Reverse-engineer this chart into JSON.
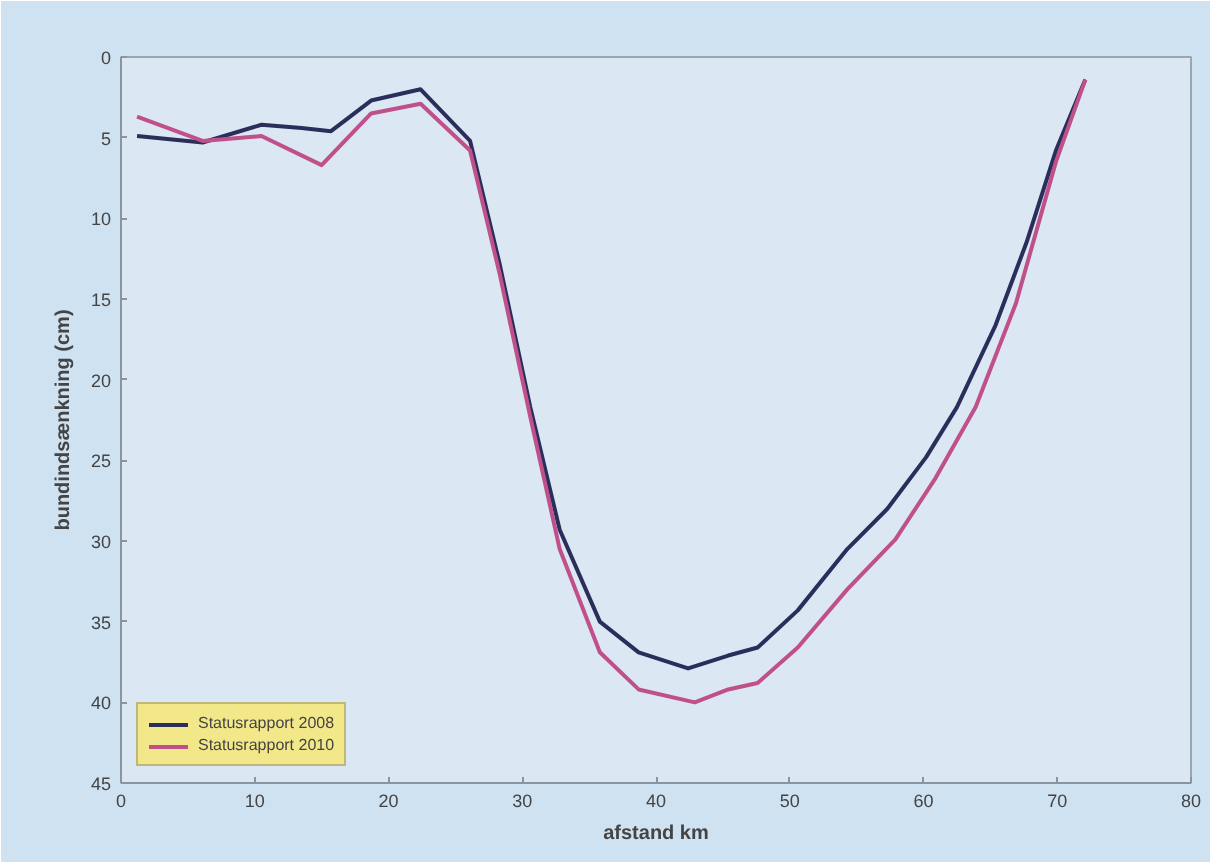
{
  "chart_data": {
    "type": "line",
    "xlabel": "afstand km",
    "ylabel": "bundindsænkning (cm)",
    "xlim": [
      0,
      80
    ],
    "xticks": [
      0,
      10,
      20,
      30,
      40,
      50,
      60,
      70,
      80
    ],
    "ylim": [
      45,
      0
    ],
    "yticks": [
      0,
      5,
      10,
      15,
      20,
      25,
      30,
      35,
      40,
      45
    ],
    "grid": false,
    "legend": "bottom left",
    "marker": "none",
    "line_style": "solid",
    "series": [
      {
        "name": "Statusrapport 2008",
        "color": "#2b2d5a",
        "x": [
          1.2,
          6.1,
          10.5,
          13.5,
          15.7,
          18.7,
          22.4,
          26.1,
          28.3,
          30.6,
          32.8,
          35.8,
          38.7,
          42.4,
          45.4,
          47.6,
          50.6,
          54.3,
          57.3,
          60.2,
          62.5,
          65.4,
          67.7,
          69.9,
          72.1
        ],
        "values": [
          4.9,
          5.3,
          4.2,
          4.4,
          4.6,
          2.7,
          2.0,
          5.2,
          12.8,
          21.7,
          29.3,
          35.0,
          36.9,
          37.9,
          37.1,
          36.6,
          34.3,
          30.5,
          28.0,
          24.8,
          21.7,
          16.6,
          11.5,
          5.8,
          1.4
        ]
      },
      {
        "name": "Statusrapport 2010",
        "color": "#c0508a",
        "x": [
          1.2,
          6.1,
          10.5,
          15.0,
          18.7,
          22.4,
          26.1,
          28.3,
          30.6,
          32.8,
          35.8,
          38.7,
          42.9,
          45.4,
          47.6,
          50.6,
          54.3,
          57.9,
          60.9,
          63.9,
          66.9,
          69.9,
          72.1
        ],
        "values": [
          3.7,
          5.2,
          4.9,
          6.7,
          3.5,
          2.9,
          5.8,
          13.4,
          22.3,
          30.5,
          36.9,
          39.2,
          40.0,
          39.2,
          38.8,
          36.6,
          33.0,
          29.9,
          26.1,
          21.7,
          15.3,
          6.5,
          1.4
        ]
      }
    ]
  }
}
